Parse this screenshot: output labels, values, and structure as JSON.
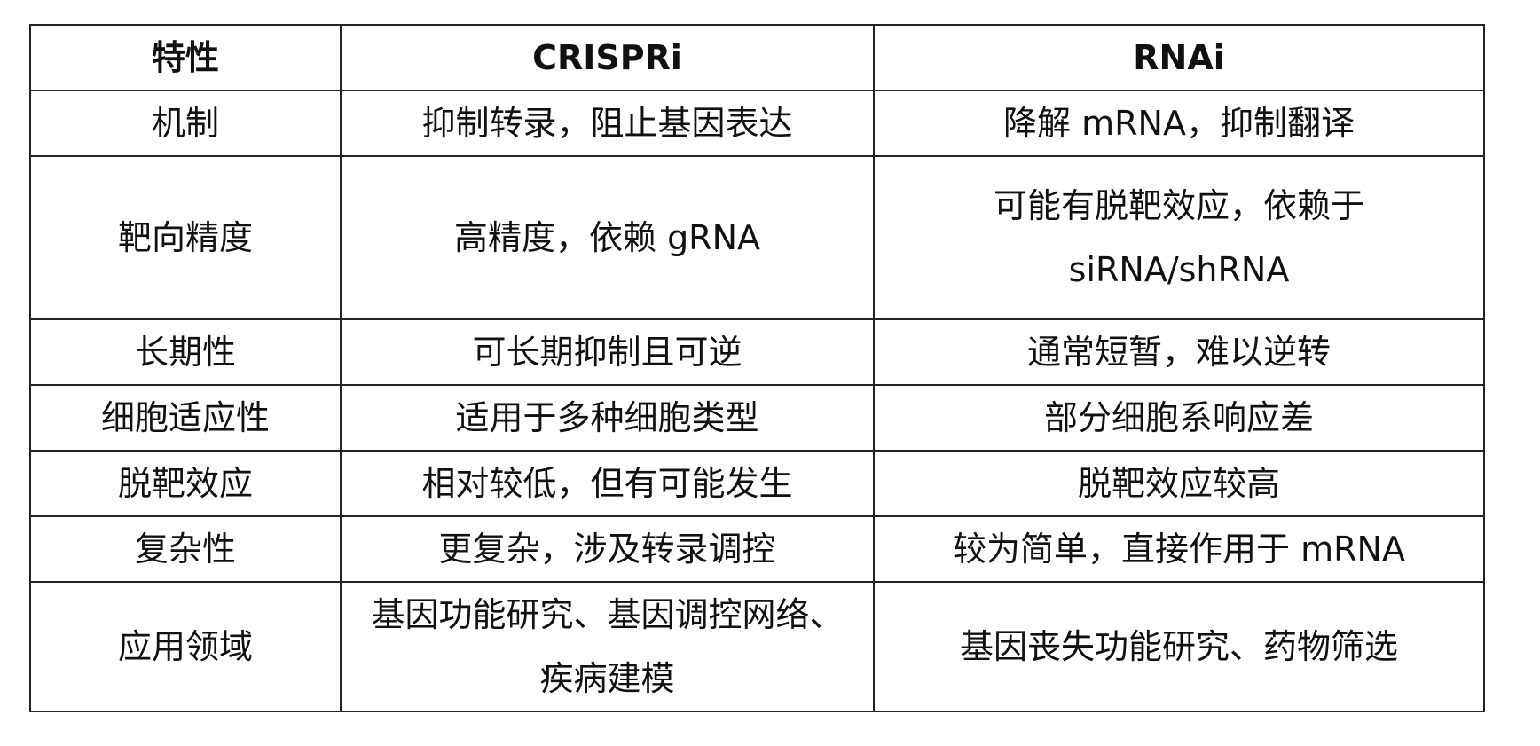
{
  "table": {
    "headers": [
      "特性",
      "CRISPRi",
      "RNAi"
    ],
    "rows": [
      {
        "feature": "机制",
        "crispri": [
          "抑制转录，阻止基因表达"
        ],
        "rnai": [
          "降解 mRNA，抑制翻译"
        ]
      },
      {
        "feature": "靶向精度",
        "crispri": [
          "高精度，依赖 gRNA"
        ],
        "rnai": [
          "可能有脱靶效应，依赖于",
          "siRNA/shRNA"
        ]
      },
      {
        "feature": "长期性",
        "crispri": [
          "可长期抑制且可逆"
        ],
        "rnai": [
          "通常短暂，难以逆转"
        ]
      },
      {
        "feature": "细胞适应性",
        "crispri": [
          "适用于多种细胞类型"
        ],
        "rnai": [
          "部分细胞系响应差"
        ]
      },
      {
        "feature": "脱靶效应",
        "crispri": [
          "相对较低，但有可能发生"
        ],
        "rnai": [
          "脱靶效应较高"
        ]
      },
      {
        "feature": "复杂性",
        "crispri": [
          "更复杂，涉及转录调控"
        ],
        "rnai": [
          "较为简单，直接作用于 mRNA"
        ]
      },
      {
        "feature": "应用领域",
        "crispri": [
          "基因功能研究、基因调控网络、",
          "疾病建模"
        ],
        "rnai": [
          "基因丧失功能研究、药物筛选"
        ]
      }
    ]
  }
}
